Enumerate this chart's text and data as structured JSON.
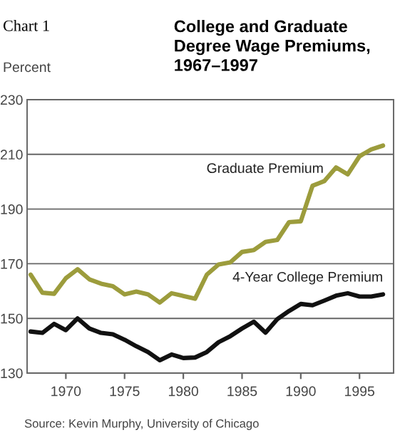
{
  "chart_data": {
    "type": "line",
    "title": "College and Graduate Degree Wage Premiums, 1967–1997",
    "ylabel": "Percent",
    "annotations": [
      "Chart 1",
      "Source: Kevin Murphy, University of Chicago"
    ],
    "x": [
      1967,
      1968,
      1969,
      1970,
      1971,
      1972,
      1973,
      1974,
      1975,
      1976,
      1977,
      1978,
      1979,
      1980,
      1981,
      1982,
      1983,
      1984,
      1985,
      1986,
      1987,
      1988,
      1989,
      1990,
      1991,
      1992,
      1993,
      1994,
      1995,
      1996,
      1997
    ],
    "series": [
      {
        "name": "Graduate Premium",
        "color": "#9c9c3c",
        "values": [
          166,
          159.4,
          159,
          164.7,
          168,
          164.3,
          162.7,
          161.8,
          158.8,
          159.8,
          158.8,
          155.8,
          159.2,
          158.2,
          157.2,
          166,
          169.7,
          170.5,
          174.3,
          175,
          178,
          178.7,
          185.2,
          185.5,
          198.5,
          200.2,
          205.2,
          202.7,
          209.3,
          211.8,
          213.2
        ]
      },
      {
        "name": "4-Year College Premium",
        "color": "#111111",
        "values": [
          145.2,
          144.7,
          148,
          145.7,
          150,
          146.3,
          144.7,
          144.2,
          142.2,
          139.8,
          137.7,
          134.7,
          136.8,
          135.5,
          135.7,
          137.7,
          141.3,
          143.5,
          146.3,
          148.8,
          144.8,
          149.7,
          152.7,
          155.3,
          154.8,
          156.5,
          158.3,
          159.2,
          158,
          158,
          158.8
        ]
      }
    ],
    "xlim": [
      1966.7,
      1997.9
    ],
    "xticks": [
      1970,
      1975,
      1980,
      1985,
      1990,
      1995
    ],
    "ylim": [
      130,
      230
    ],
    "yticks": [
      130,
      150,
      170,
      190,
      210,
      230
    ],
    "grid": "y",
    "legend": false,
    "marker": "none",
    "line_style": "solid"
  }
}
